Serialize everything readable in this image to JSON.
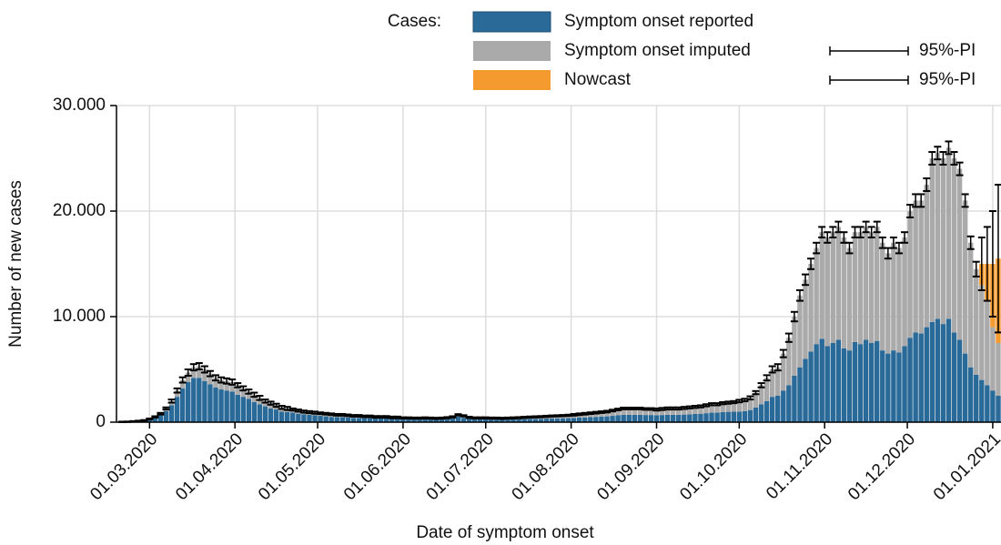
{
  "chart_data": {
    "type": "bar",
    "stacked": true,
    "legend_title": "Cases:",
    "x_label": "Date of symptom onset",
    "y_label": "Number of new cases",
    "x": [
      "2020-02-20",
      "2020-02-22",
      "2020-02-24",
      "2020-02-26",
      "2020-02-28",
      "2020-03-01",
      "2020-03-03",
      "2020-03-05",
      "2020-03-07",
      "2020-03-09",
      "2020-03-11",
      "2020-03-13",
      "2020-03-15",
      "2020-03-17",
      "2020-03-19",
      "2020-03-21",
      "2020-03-23",
      "2020-03-25",
      "2020-03-27",
      "2020-03-29",
      "2020-03-31",
      "2020-04-02",
      "2020-04-04",
      "2020-04-06",
      "2020-04-08",
      "2020-04-10",
      "2020-04-12",
      "2020-04-14",
      "2020-04-16",
      "2020-04-18",
      "2020-04-20",
      "2020-04-22",
      "2020-04-24",
      "2020-04-26",
      "2020-04-28",
      "2020-04-30",
      "2020-05-02",
      "2020-05-04",
      "2020-05-06",
      "2020-05-08",
      "2020-05-10",
      "2020-05-12",
      "2020-05-14",
      "2020-05-16",
      "2020-05-18",
      "2020-05-20",
      "2020-05-22",
      "2020-05-24",
      "2020-05-26",
      "2020-05-28",
      "2020-05-30",
      "2020-06-01",
      "2020-06-03",
      "2020-06-05",
      "2020-06-07",
      "2020-06-09",
      "2020-06-11",
      "2020-06-13",
      "2020-06-15",
      "2020-06-17",
      "2020-06-19",
      "2020-06-21",
      "2020-06-23",
      "2020-06-25",
      "2020-06-27",
      "2020-06-29",
      "2020-07-01",
      "2020-07-03",
      "2020-07-05",
      "2020-07-07",
      "2020-07-09",
      "2020-07-11",
      "2020-07-13",
      "2020-07-15",
      "2020-07-17",
      "2020-07-19",
      "2020-07-21",
      "2020-07-23",
      "2020-07-25",
      "2020-07-27",
      "2020-07-29",
      "2020-07-31",
      "2020-08-02",
      "2020-08-04",
      "2020-08-06",
      "2020-08-08",
      "2020-08-10",
      "2020-08-12",
      "2020-08-14",
      "2020-08-16",
      "2020-08-18",
      "2020-08-20",
      "2020-08-22",
      "2020-08-24",
      "2020-08-26",
      "2020-08-28",
      "2020-08-30",
      "2020-09-01",
      "2020-09-03",
      "2020-09-05",
      "2020-09-07",
      "2020-09-09",
      "2020-09-11",
      "2020-09-13",
      "2020-09-15",
      "2020-09-17",
      "2020-09-19",
      "2020-09-21",
      "2020-09-23",
      "2020-09-25",
      "2020-09-27",
      "2020-09-29",
      "2020-10-01",
      "2020-10-03",
      "2020-10-05",
      "2020-10-07",
      "2020-10-09",
      "2020-10-11",
      "2020-10-13",
      "2020-10-15",
      "2020-10-17",
      "2020-10-19",
      "2020-10-21",
      "2020-10-23",
      "2020-10-25",
      "2020-10-27",
      "2020-10-29",
      "2020-10-31",
      "2020-11-02",
      "2020-11-04",
      "2020-11-06",
      "2020-11-08",
      "2020-11-10",
      "2020-11-12",
      "2020-11-14",
      "2020-11-16",
      "2020-11-18",
      "2020-11-20",
      "2020-11-22",
      "2020-11-24",
      "2020-11-26",
      "2020-11-28",
      "2020-11-30",
      "2020-12-02",
      "2020-12-04",
      "2020-12-06",
      "2020-12-08",
      "2020-12-10",
      "2020-12-12",
      "2020-12-14",
      "2020-12-16",
      "2020-12-18",
      "2020-12-20",
      "2020-12-22",
      "2020-12-24",
      "2020-12-26",
      "2020-12-28",
      "2020-12-30",
      "2021-01-01",
      "2021-01-03"
    ],
    "series": [
      {
        "name": "Symptom onset reported",
        "color": "#2a6a99",
        "values": [
          20,
          30,
          50,
          80,
          120,
          240,
          400,
          640,
          1040,
          1600,
          2400,
          3200,
          3800,
          4200,
          4200,
          3900,
          3600,
          3300,
          3100,
          3000,
          2900,
          2600,
          2400,
          2200,
          1900,
          1700,
          1500,
          1300,
          1200,
          1000,
          950,
          900,
          800,
          750,
          700,
          650,
          600,
          550,
          500,
          480,
          480,
          450,
          400,
          400,
          380,
          380,
          350,
          350,
          350,
          300,
          300,
          260,
          260,
          250,
          250,
          260,
          250,
          240,
          250,
          280,
          350,
          550,
          420,
          300,
          260,
          260,
          260,
          250,
          250,
          240,
          250,
          260,
          270,
          290,
          300,
          310,
          320,
          340,
          350,
          360,
          370,
          380,
          400,
          430,
          450,
          480,
          500,
          530,
          550,
          600,
          650,
          700,
          700,
          700,
          700,
          680,
          680,
          650,
          680,
          700,
          700,
          700,
          720,
          750,
          780,
          800,
          850,
          900,
          900,
          950,
          980,
          1000,
          1000,
          1050,
          1150,
          1400,
          1700,
          2000,
          2400,
          2500,
          3000,
          3500,
          4400,
          5200,
          6000,
          6700,
          7400,
          7900,
          7200,
          7500,
          7800,
          7000,
          6800,
          7600,
          7400,
          7800,
          7500,
          7700,
          6800,
          6500,
          6800,
          6600,
          7200,
          8000,
          8500,
          8400,
          9000,
          9500,
          9800,
          9300,
          9800,
          8500,
          7800,
          6500,
          5200,
          4500,
          4000,
          3500,
          3000,
          2500
        ]
      },
      {
        "name": "Symptom onset imputed",
        "color": "#aaaaaa",
        "pi_label": "95%-PI",
        "values": [
          10,
          10,
          20,
          30,
          40,
          60,
          100,
          160,
          260,
          400,
          600,
          800,
          900,
          1000,
          1100,
          1100,
          1000,
          900,
          900,
          900,
          900,
          900,
          800,
          700,
          700,
          600,
          500,
          500,
          400,
          400,
          350,
          300,
          300,
          250,
          250,
          250,
          250,
          250,
          250,
          220,
          220,
          200,
          200,
          200,
          170,
          170,
          150,
          150,
          150,
          150,
          150,
          140,
          140,
          130,
          130,
          140,
          130,
          120,
          130,
          140,
          150,
          150,
          180,
          150,
          140,
          140,
          140,
          130,
          130,
          120,
          130,
          140,
          150,
          160,
          180,
          190,
          200,
          210,
          230,
          240,
          250,
          270,
          300,
          320,
          350,
          370,
          400,
          420,
          450,
          500,
          550,
          600,
          600,
          600,
          600,
          570,
          570,
          550,
          570,
          600,
          600,
          600,
          630,
          650,
          670,
          700,
          750,
          800,
          800,
          850,
          870,
          900,
          1000,
          1050,
          1150,
          1400,
          1800,
          2200,
          2600,
          2700,
          3500,
          4500,
          5600,
          6800,
          7500,
          8300,
          9100,
          10100,
          10300,
          10500,
          10700,
          10500,
          9700,
          10400,
          10600,
          10700,
          10500,
          10800,
          10200,
          9500,
          10200,
          9900,
          10300,
          12000,
          12500,
          12600,
          13500,
          15500,
          15700,
          15700,
          16200,
          16500,
          16200,
          14500,
          11800,
          10000,
          9000,
          8000,
          6000,
          5000
        ],
        "errors": [
          20,
          20,
          30,
          30,
          40,
          50,
          60,
          80,
          100,
          150,
          200,
          250,
          300,
          300,
          300,
          300,
          250,
          250,
          250,
          250,
          250,
          200,
          200,
          200,
          200,
          200,
          150,
          150,
          150,
          150,
          150,
          100,
          100,
          100,
          100,
          100,
          80,
          80,
          80,
          80,
          80,
          80,
          80,
          80,
          80,
          80,
          80,
          80,
          80,
          80,
          80,
          60,
          60,
          60,
          60,
          60,
          60,
          60,
          60,
          60,
          60,
          60,
          60,
          60,
          60,
          60,
          60,
          60,
          60,
          60,
          60,
          60,
          60,
          60,
          60,
          60,
          60,
          60,
          60,
          60,
          60,
          60,
          80,
          80,
          80,
          80,
          80,
          80,
          80,
          80,
          80,
          80,
          80,
          80,
          80,
          80,
          80,
          100,
          100,
          100,
          100,
          100,
          100,
          100,
          100,
          100,
          100,
          100,
          100,
          100,
          100,
          100,
          120,
          120,
          150,
          150,
          200,
          250,
          300,
          300,
          350,
          400,
          450,
          500,
          500,
          500,
          500,
          500,
          500,
          500,
          500,
          500,
          500,
          500,
          500,
          500,
          500,
          500,
          500,
          500,
          500,
          500,
          500,
          600,
          600,
          600,
          600,
          600,
          600,
          600,
          600,
          600,
          600,
          600,
          600,
          700,
          null,
          null,
          null,
          null
        ]
      },
      {
        "name": "Nowcast",
        "color": "#f59a2f",
        "pi_label": "95%-PI",
        "values": [
          null,
          null,
          null,
          null,
          null,
          null,
          null,
          null,
          null,
          null,
          null,
          null,
          null,
          null,
          null,
          null,
          null,
          null,
          null,
          null,
          null,
          null,
          null,
          null,
          null,
          null,
          null,
          null,
          null,
          null,
          null,
          null,
          null,
          null,
          null,
          null,
          null,
          null,
          null,
          null,
          null,
          null,
          null,
          null,
          null,
          null,
          null,
          null,
          null,
          null,
          null,
          null,
          null,
          null,
          null,
          null,
          null,
          null,
          null,
          null,
          null,
          null,
          null,
          null,
          null,
          null,
          null,
          null,
          null,
          null,
          null,
          null,
          null,
          null,
          null,
          null,
          null,
          null,
          null,
          null,
          null,
          null,
          null,
          null,
          null,
          null,
          null,
          null,
          null,
          null,
          null,
          null,
          null,
          null,
          null,
          null,
          null,
          null,
          null,
          null,
          null,
          null,
          null,
          null,
          null,
          null,
          null,
          null,
          null,
          null,
          null,
          null,
          null,
          null,
          null,
          null,
          null,
          null,
          null,
          null,
          null,
          null,
          null,
          null,
          null,
          null,
          null,
          null,
          null,
          null,
          null,
          null,
          null,
          null,
          null,
          null,
          null,
          null,
          null,
          null,
          null,
          null,
          null,
          null,
          null,
          null,
          null,
          null,
          null,
          null,
          null,
          null,
          null,
          null,
          null,
          null,
          2000,
          3500,
          6000,
          8000
        ],
        "errors": [
          null,
          null,
          null,
          null,
          null,
          null,
          null,
          null,
          null,
          null,
          null,
          null,
          null,
          null,
          null,
          null,
          null,
          null,
          null,
          null,
          null,
          null,
          null,
          null,
          null,
          null,
          null,
          null,
          null,
          null,
          null,
          null,
          null,
          null,
          null,
          null,
          null,
          null,
          null,
          null,
          null,
          null,
          null,
          null,
          null,
          null,
          null,
          null,
          null,
          null,
          null,
          null,
          null,
          null,
          null,
          null,
          null,
          null,
          null,
          null,
          null,
          null,
          null,
          null,
          null,
          null,
          null,
          null,
          null,
          null,
          null,
          null,
          null,
          null,
          null,
          null,
          null,
          null,
          null,
          null,
          null,
          null,
          null,
          null,
          null,
          null,
          null,
          null,
          null,
          null,
          null,
          null,
          null,
          null,
          null,
          null,
          null,
          null,
          null,
          null,
          null,
          null,
          null,
          null,
          null,
          null,
          null,
          null,
          null,
          null,
          null,
          null,
          null,
          null,
          null,
          null,
          null,
          null,
          null,
          null,
          null,
          null,
          null,
          null,
          null,
          null,
          null,
          null,
          null,
          null,
          null,
          null,
          null,
          null,
          null,
          null,
          null,
          null,
          null,
          null,
          null,
          null,
          null,
          null,
          null,
          null,
          null,
          null,
          null,
          null,
          null,
          null,
          null,
          null,
          null,
          null,
          2500,
          3500,
          5000,
          7000
        ]
      }
    ],
    "xlim": [
      "2020-02-18",
      "2021-01-04"
    ],
    "xticks": [
      {
        "value": "2020-03-01",
        "label": "01.03.2020"
      },
      {
        "value": "2020-04-01",
        "label": "01.04.2020"
      },
      {
        "value": "2020-05-01",
        "label": "01.05.2020"
      },
      {
        "value": "2020-06-01",
        "label": "01.06.2020"
      },
      {
        "value": "2020-07-01",
        "label": "01.07.2020"
      },
      {
        "value": "2020-08-01",
        "label": "01.08.2020"
      },
      {
        "value": "2020-09-01",
        "label": "01.09.2020"
      },
      {
        "value": "2020-10-01",
        "label": "01.10.2020"
      },
      {
        "value": "2020-11-01",
        "label": "01.11.2020"
      },
      {
        "value": "2020-12-01",
        "label": "01.12.2020"
      },
      {
        "value": "2021-01-01",
        "label": "01.01.2021"
      }
    ],
    "ylim": [
      0,
      30000
    ],
    "yticks": [
      0,
      {
        "value": 10000,
        "label": "10.000"
      },
      {
        "value": 20000,
        "label": "20.000"
      },
      {
        "value": 30000,
        "label": "30.000"
      }
    ],
    "grid": true
  }
}
